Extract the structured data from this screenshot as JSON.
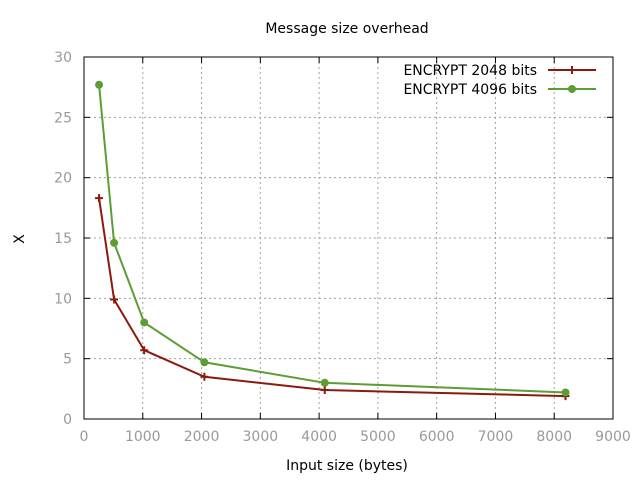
{
  "chart_data": {
    "type": "line",
    "title": "Message size overhead",
    "xlabel": "Input size (bytes)",
    "ylabel": "X",
    "xlim": [
      0,
      9000
    ],
    "ylim": [
      0,
      30
    ],
    "xticks": [
      0,
      1000,
      2000,
      3000,
      4000,
      5000,
      6000,
      7000,
      8000,
      9000
    ],
    "yticks": [
      0,
      5,
      10,
      15,
      20,
      25,
      30
    ],
    "grid": true,
    "legend_position": "top-right",
    "series": [
      {
        "name": "ENCRYPT 2048 bits",
        "color": "#8b1a0e",
        "marker": "plus",
        "x": [
          256,
          512,
          1024,
          2048,
          4096,
          8192
        ],
        "y": [
          18.3,
          9.9,
          5.7,
          3.5,
          2.4,
          1.9
        ]
      },
      {
        "name": "ENCRYPT 4096 bits",
        "color": "#5e9c36",
        "marker": "filled-circle",
        "x": [
          256,
          512,
          1024,
          2048,
          4096,
          8192
        ],
        "y": [
          27.7,
          14.6,
          8.0,
          4.7,
          3.0,
          2.2
        ]
      }
    ]
  }
}
